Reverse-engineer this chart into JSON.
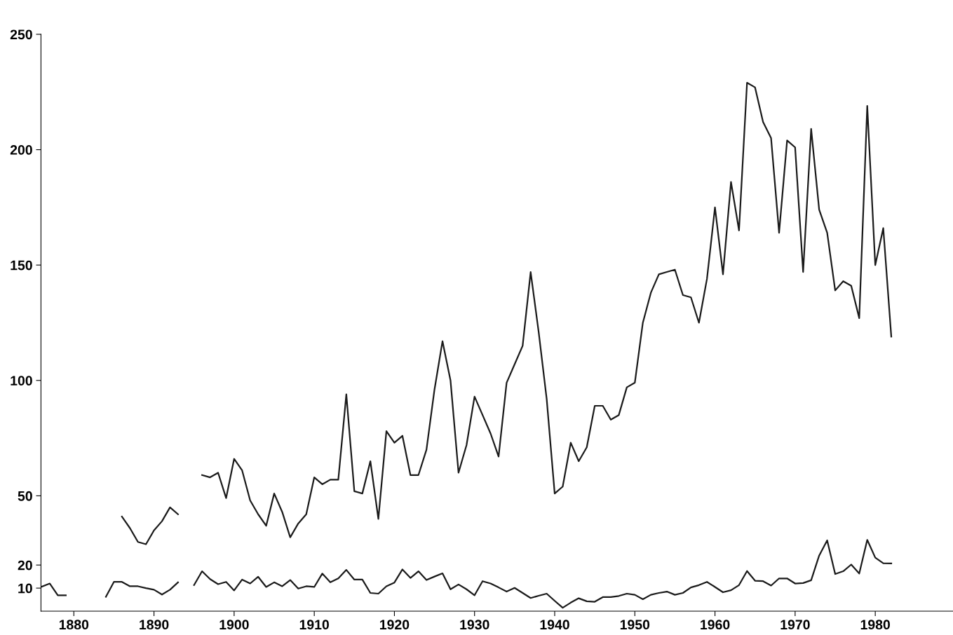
{
  "chart_data": {
    "type": "line",
    "x": [
      1876,
      1877,
      1878,
      1879,
      1880,
      1881,
      1882,
      1883,
      1884,
      1885,
      1886,
      1887,
      1888,
      1889,
      1890,
      1891,
      1892,
      1893,
      1894,
      1895,
      1896,
      1897,
      1898,
      1899,
      1900,
      1901,
      1902,
      1903,
      1904,
      1905,
      1906,
      1907,
      1908,
      1909,
      1910,
      1911,
      1912,
      1913,
      1914,
      1915,
      1916,
      1917,
      1918,
      1919,
      1920,
      1921,
      1922,
      1923,
      1924,
      1925,
      1926,
      1927,
      1928,
      1929,
      1930,
      1931,
      1932,
      1933,
      1934,
      1935,
      1936,
      1937,
      1938,
      1939,
      1940,
      1941,
      1942,
      1943,
      1944,
      1945,
      1946,
      1947,
      1948,
      1949,
      1950,
      1951,
      1952,
      1953,
      1954,
      1955,
      1956,
      1957,
      1958,
      1959,
      1960,
      1961,
      1962,
      1963,
      1964,
      1965,
      1966,
      1967,
      1968,
      1969,
      1970,
      1971,
      1972,
      1973,
      1974,
      1975,
      1976,
      1977,
      1978,
      1979,
      1980,
      1981,
      1982
    ],
    "series": [
      {
        "color": "#1a1a1a",
        "values": [
          null,
          null,
          null,
          null,
          null,
          null,
          null,
          null,
          null,
          null,
          41,
          36,
          30,
          29,
          35,
          39,
          45,
          42,
          null,
          null,
          59,
          58,
          60,
          49,
          66,
          61,
          48,
          42,
          37,
          51,
          43,
          32,
          38,
          42,
          58,
          55,
          57,
          57,
          94,
          52,
          51,
          65,
          40,
          78,
          73,
          76,
          59,
          59,
          70,
          96,
          117,
          100,
          60,
          72,
          93,
          85,
          77,
          67,
          99,
          107,
          115,
          147,
          121,
          92,
          51,
          54,
          73,
          65,
          71,
          89,
          89,
          83,
          85,
          97,
          99,
          125,
          138,
          146,
          147,
          148,
          137,
          136,
          125,
          144,
          175,
          146,
          186,
          165,
          229,
          227,
          212,
          205,
          164,
          204,
          201,
          147,
          209,
          174,
          164,
          139,
          143,
          141,
          127,
          219,
          150,
          166,
          119
        ]
      },
      {
        "color": "#1a1a1a",
        "values": [
          10.6,
          12.0,
          6.9,
          6.9,
          null,
          null,
          null,
          null,
          6.2,
          12.7,
          12.7,
          10.8,
          10.8,
          10.0,
          9.3,
          7.2,
          9.3,
          12.5,
          null,
          11.3,
          17.3,
          13.9,
          11.7,
          12.7,
          9.0,
          13.7,
          12.0,
          14.9,
          10.5,
          12.5,
          10.8,
          13.5,
          9.8,
          10.8,
          10.5,
          16.3,
          12.5,
          14.2,
          17.9,
          13.7,
          13.7,
          7.9,
          7.6,
          10.8,
          12.4,
          18.1,
          14.4,
          17.3,
          13.5,
          15.0,
          16.4,
          9.5,
          11.6,
          9.5,
          6.9,
          13.0,
          12.0,
          10.3,
          8.5,
          10.1,
          7.9,
          5.7,
          6.7,
          7.6,
          4.5,
          1.5,
          3.7,
          5.6,
          4.3,
          4.1,
          6.1,
          6.1,
          6.6,
          7.6,
          7.1,
          5.2,
          7.1,
          7.9,
          8.5,
          7.1,
          7.9,
          10.3,
          11.3,
          12.7,
          10.5,
          8.2,
          9.1,
          11.3,
          17.4,
          13.2,
          13.0,
          11.1,
          14.2,
          14.2,
          12.0,
          12.2,
          13.4,
          24.1,
          30.7,
          16.1,
          17.3,
          20.2,
          16.3,
          30.9,
          23.2,
          20.8,
          20.7
        ]
      }
    ],
    "xlim": [
      1875.9,
      1989.7
    ],
    "xticks": [
      1880,
      1890,
      1900,
      1910,
      1920,
      1930,
      1940,
      1950,
      1960,
      1970,
      1980
    ],
    "ylim": [
      0,
      250
    ],
    "yticks": [
      10,
      20,
      50,
      100,
      150,
      200,
      250
    ],
    "grid": false,
    "marker": "none",
    "line_style": "solid"
  }
}
